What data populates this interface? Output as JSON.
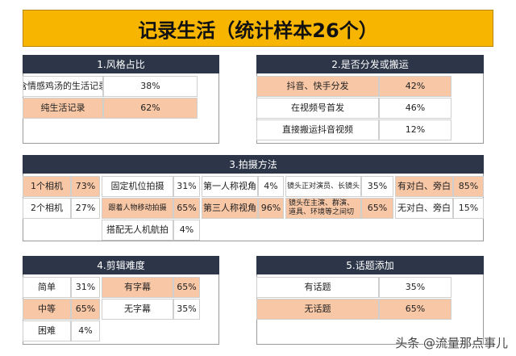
{
  "header": {
    "title": "记录生活（统计样本26个）"
  },
  "sections": [
    {
      "title": "1.风格占比",
      "rows": [
        [
          "含情感鸡汤的生活记录",
          "38%"
        ],
        [
          "纯生活记录",
          "62%"
        ]
      ]
    },
    {
      "title": "2.是否分发或搬运",
      "rows": [
        [
          "抖音、快手分发",
          "42%"
        ],
        [
          "在视频号首发",
          "46%"
        ],
        [
          "直接搬运抖音视频",
          "12%"
        ]
      ]
    },
    {
      "title": "3.拍摄方法",
      "groups": [
        [
          [
            "1个相机",
            "73%"
          ],
          [
            "2个相机",
            "27%"
          ]
        ],
        [
          [
            "固定机位拍摄",
            "31%"
          ],
          [
            "跟着人物移动拍摄",
            "65%"
          ],
          [
            "搭配无人机航拍",
            "4%"
          ]
        ],
        [
          [
            "第一人称视角",
            "4%"
          ],
          [
            "第三人称视角",
            "96%"
          ]
        ],
        [
          [
            "镜头正对演员、长镜头",
            "35%"
          ],
          [
            "镜头在主演、群演、道具、环境等之间切",
            "65%"
          ]
        ],
        [
          [
            "有对白、旁白",
            "85%"
          ],
          [
            "无对白、旁白",
            "15%"
          ]
        ]
      ]
    },
    {
      "title": "4.剪辑难度",
      "groups": [
        [
          [
            "简单",
            "31%"
          ],
          [
            "中等",
            "65%"
          ],
          [
            "困难",
            "4%"
          ]
        ],
        [
          [
            "有字幕",
            "65%"
          ],
          [
            "无字幕",
            "35%"
          ]
        ]
      ]
    },
    {
      "title": "5.话题添加",
      "rows": [
        [
          "有话题",
          "35%"
        ],
        [
          "无话题",
          "65%"
        ]
      ]
    }
  ],
  "watermark": "头条 @流量那点事儿"
}
